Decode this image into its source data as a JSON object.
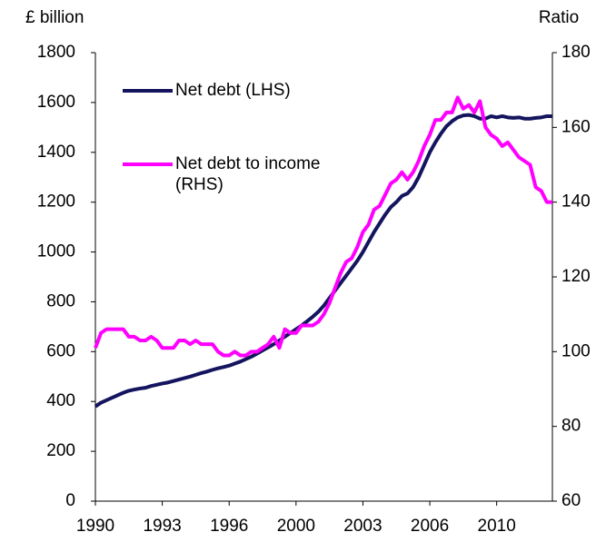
{
  "chart_data": {
    "type": "line",
    "y_label": "£ billion",
    "y2_label": "Ratio",
    "categories": [
      "1990",
      null,
      null,
      null,
      null,
      null,
      null,
      null,
      null,
      null,
      null,
      null,
      "1993",
      null,
      null,
      null,
      null,
      null,
      null,
      null,
      null,
      null,
      null,
      null,
      "1996",
      null,
      null,
      null,
      null,
      null,
      null,
      null,
      null,
      null,
      null,
      null,
      "2000",
      null,
      null,
      null,
      null,
      null,
      null,
      null,
      null,
      null,
      null,
      null,
      "2003",
      null,
      null,
      null,
      null,
      null,
      null,
      null,
      null,
      null,
      null,
      null,
      "2006",
      null,
      null,
      null,
      null,
      null,
      null,
      null,
      null,
      null,
      null,
      null,
      "2010",
      null,
      null,
      null,
      null,
      null,
      null,
      null,
      null,
      null,
      null
    ],
    "series": [
      {
        "name": "Net debt (LHS)",
        "color": "#14145f",
        "axis": "y",
        "values": [
          380,
          395,
          405,
          415,
          425,
          435,
          443,
          448,
          452,
          455,
          462,
          467,
          472,
          476,
          482,
          488,
          494,
          500,
          507,
          514,
          520,
          527,
          533,
          538,
          544,
          552,
          560,
          570,
          580,
          592,
          605,
          617,
          630,
          645,
          660,
          675,
          690,
          705,
          722,
          740,
          760,
          785,
          815,
          845,
          875,
          905,
          935,
          965,
          1000,
          1040,
          1080,
          1115,
          1150,
          1180,
          1200,
          1225,
          1235,
          1260,
          1300,
          1350,
          1400,
          1440,
          1475,
          1505,
          1525,
          1540,
          1548,
          1550,
          1545,
          1535,
          1535,
          1545,
          1540,
          1545,
          1540,
          1538,
          1540,
          1535,
          1535,
          1538,
          1540,
          1545,
          1545
        ]
      },
      {
        "name": "Net debt to income (RHS)",
        "color": "#ff00ff",
        "axis": "y2",
        "values": [
          101,
          105,
          106,
          106,
          106,
          106,
          104,
          104,
          103,
          103,
          104,
          103,
          101,
          101,
          101,
          103,
          103,
          102,
          103,
          102,
          102,
          102,
          100,
          99,
          99,
          100,
          99,
          99,
          100,
          100,
          101,
          102,
          104,
          101,
          106,
          105,
          105,
          107,
          107,
          107,
          108,
          110,
          113,
          117,
          121,
          124,
          125,
          128,
          132,
          134,
          138,
          139,
          142,
          145,
          146,
          148,
          146,
          148,
          151,
          155,
          158,
          162,
          162,
          164,
          164,
          168,
          165,
          166,
          164,
          167,
          160,
          158,
          157,
          155,
          156,
          154,
          152,
          151,
          150,
          144,
          143,
          140,
          140
        ]
      }
    ],
    "ylim": [
      0,
      1800
    ],
    "yticks": [
      0,
      200,
      400,
      600,
      800,
      1000,
      1200,
      1400,
      1600,
      1800
    ],
    "y2lim": [
      60,
      180
    ],
    "y2ticks": [
      60,
      80,
      100,
      120,
      140,
      160,
      180
    ]
  }
}
